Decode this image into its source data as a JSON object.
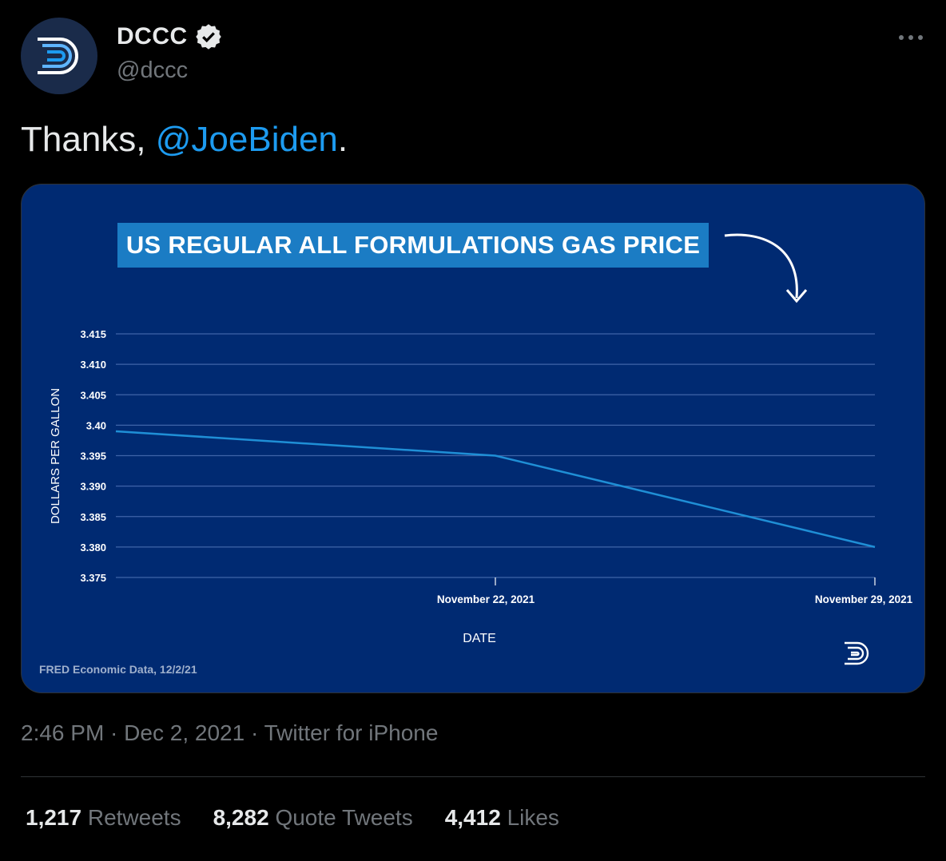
{
  "author": {
    "display_name": "DCCC",
    "handle": "@dccc",
    "verified": true
  },
  "tweet": {
    "text_prefix": "Thanks, ",
    "mention": "@JoeBiden",
    "text_suffix": "."
  },
  "meta": {
    "time": "2:46 PM",
    "separator1": " · ",
    "date": "Dec 2, 2021",
    "separator2": " · ",
    "source": "Twitter for iPhone"
  },
  "stats": [
    {
      "count": "1,217",
      "label": "Retweets"
    },
    {
      "count": "8,282",
      "label": "Quote Tweets"
    },
    {
      "count": "4,412",
      "label": "Likes"
    }
  ],
  "icons": {
    "avatar": "dccc-logo-icon",
    "verified": "verified-badge-icon",
    "more": "more-options-icon"
  },
  "colors": {
    "background": "#000000",
    "accent": "#1d9bf0",
    "chart_bg": "#002a72",
    "chart_line": "#1f8fd6",
    "title_box": "#1b7cc4"
  },
  "chart_data": {
    "type": "line",
    "title": "US REGULAR ALL FORMULATIONS GAS PRICE",
    "xlabel": "DATE",
    "ylabel": "DOLLARS PER GALLON",
    "x": [
      "2021-11-15",
      "2021-11-22",
      "2021-11-29"
    ],
    "x_tick_labels": [
      "November 22, 2021",
      "November 29, 2021"
    ],
    "x_ticks": [
      "2021-11-22",
      "2021-11-29"
    ],
    "series": [
      {
        "values": [
          3.399,
          3.395,
          3.38
        ]
      }
    ],
    "y_ticks": [
      3.415,
      3.41,
      3.405,
      3.4,
      3.395,
      3.39,
      3.385,
      3.38,
      3.375
    ],
    "y_tick_labels": [
      "3.415",
      "3.410",
      "3.405",
      "3.40",
      "3.395",
      "3.390",
      "3.385",
      "3.380",
      "3.375"
    ],
    "ylim": [
      3.375,
      3.415
    ],
    "grid": true,
    "footnote": "FRED Economic Data, 12/2/21"
  }
}
